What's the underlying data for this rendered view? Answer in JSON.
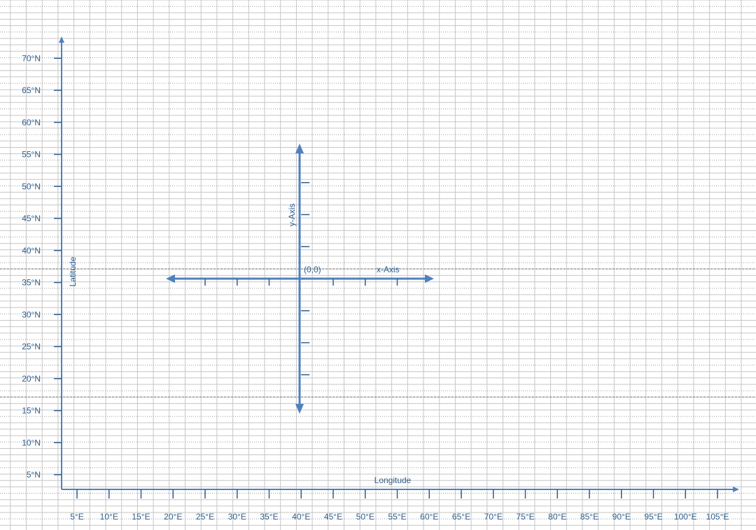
{
  "map_axes": {
    "latitude_label": "Latitude",
    "longitude_label": "Longitude",
    "latitude_ticks": [
      "5°N",
      "10°N",
      "15°N",
      "20°N",
      "25°N",
      "30°N",
      "35°N",
      "40°N",
      "45°N",
      "50°N",
      "55°N",
      "60°N",
      "65°N",
      "70°N"
    ],
    "longitude_ticks": [
      "5°E",
      "10°E",
      "15°E",
      "20°E",
      "25°E",
      "30°E",
      "35°E",
      "40°E",
      "45°E",
      "50°E",
      "55°E",
      "60°E",
      "65°E",
      "70°E",
      "75°E",
      "80°E",
      "85°E",
      "90°E",
      "95°E",
      "100°E",
      "105°E"
    ]
  },
  "local_axes": {
    "origin_label": "(0,0)",
    "x_axis_label": "x-Axis",
    "y_axis_label": "y-Axis",
    "origin_longitude": 40,
    "origin_latitude": 35
  },
  "colors": {
    "axis": "#4f81bd",
    "label": "#2e5f8f",
    "grid": "#c6c6c6"
  }
}
